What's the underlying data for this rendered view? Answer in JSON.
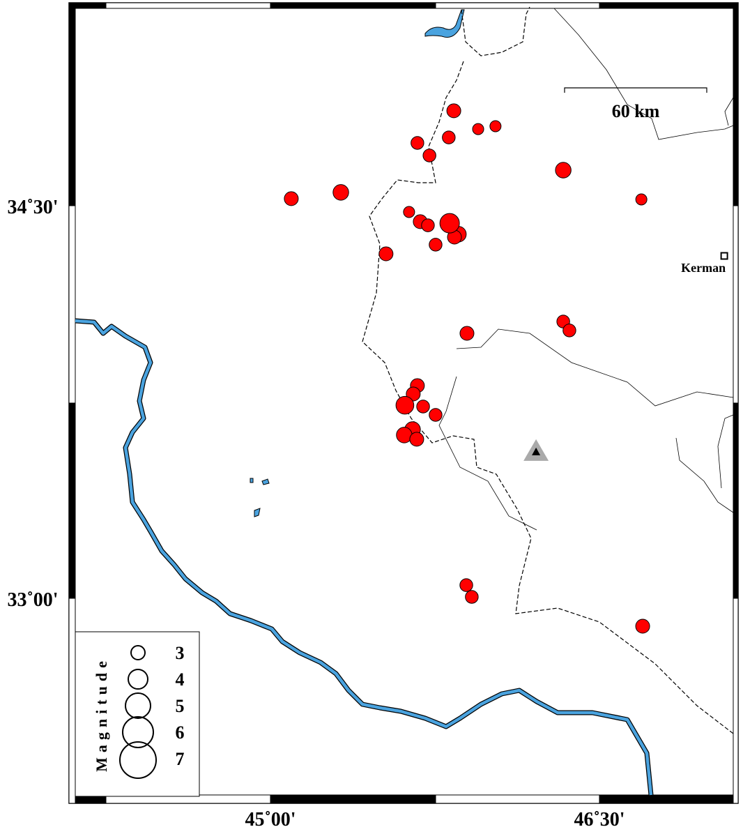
{
  "map": {
    "extent": {
      "lon_min": 44.08,
      "lon_max": 47.13,
      "lat_min": 32.23,
      "lat_max": 35.27
    },
    "lon_ticks": [
      {
        "value": 45.0,
        "label": "45˚00'"
      },
      {
        "value": 46.5,
        "label": "46˚30'"
      }
    ],
    "lat_ticks": [
      {
        "value": 34.5,
        "label": "34˚30'"
      },
      {
        "value": 33.0,
        "label": "33˚00'"
      }
    ],
    "scale_bar": {
      "label": "60 km",
      "length_km": 60
    },
    "colors": {
      "event": "#ff0000",
      "river": "#4aa3df",
      "station": "#000000",
      "station_halo": "#aaaaaa"
    }
  },
  "legend": {
    "title": "Magnitude",
    "items": [
      {
        "mag": 3,
        "label": "3"
      },
      {
        "mag": 4,
        "label": "4"
      },
      {
        "mag": 5,
        "label": "5"
      },
      {
        "mag": 6,
        "label": "6"
      },
      {
        "mag": 7,
        "label": "7"
      }
    ]
  },
  "city": {
    "name": "Kerman",
    "lon": 47.069,
    "lat": 34.308,
    "icon": "square-icon"
  },
  "station": {
    "lon": 46.211,
    "lat": 33.559,
    "icon": "triangle-icon"
  },
  "events": [
    {
      "lon": 45.836,
      "lat": 34.863,
      "mag": 3.0
    },
    {
      "lon": 45.947,
      "lat": 34.793,
      "mag": 2.5
    },
    {
      "lon": 46.026,
      "lat": 34.804,
      "mag": 2.5
    },
    {
      "lon": 45.813,
      "lat": 34.761,
      "mag": 2.8
    },
    {
      "lon": 45.67,
      "lat": 34.74,
      "mag": 2.8
    },
    {
      "lon": 45.725,
      "lat": 34.692,
      "mag": 2.8
    },
    {
      "lon": 46.335,
      "lat": 34.636,
      "mag": 3.3
    },
    {
      "lon": 45.095,
      "lat": 34.527,
      "mag": 3.0
    },
    {
      "lon": 45.321,
      "lat": 34.551,
      "mag": 3.3
    },
    {
      "lon": 46.691,
      "lat": 34.524,
      "mag": 2.5
    },
    {
      "lon": 45.632,
      "lat": 34.476,
      "mag": 2.5
    },
    {
      "lon": 45.683,
      "lat": 34.439,
      "mag": 3.0
    },
    {
      "lon": 45.718,
      "lat": 34.425,
      "mag": 2.8
    },
    {
      "lon": 45.857,
      "lat": 34.391,
      "mag": 3.3
    },
    {
      "lon": 45.839,
      "lat": 34.38,
      "mag": 3.0
    },
    {
      "lon": 45.817,
      "lat": 34.433,
      "mag": 4.0
    },
    {
      "lon": 45.753,
      "lat": 34.351,
      "mag": 2.8
    },
    {
      "lon": 45.527,
      "lat": 34.316,
      "mag": 3.0
    },
    {
      "lon": 46.335,
      "lat": 34.057,
      "mag": 2.8
    },
    {
      "lon": 46.363,
      "lat": 34.023,
      "mag": 2.8
    },
    {
      "lon": 45.896,
      "lat": 34.012,
      "mag": 3.0
    },
    {
      "lon": 45.67,
      "lat": 33.812,
      "mag": 3.0
    },
    {
      "lon": 45.651,
      "lat": 33.78,
      "mag": 3.0
    },
    {
      "lon": 45.613,
      "lat": 33.737,
      "mag": 3.7
    },
    {
      "lon": 45.696,
      "lat": 33.732,
      "mag": 2.8
    },
    {
      "lon": 45.753,
      "lat": 33.7,
      "mag": 2.8
    },
    {
      "lon": 45.648,
      "lat": 33.644,
      "mag": 3.3
    },
    {
      "lon": 45.61,
      "lat": 33.623,
      "mag": 3.3
    },
    {
      "lon": 45.667,
      "lat": 33.607,
      "mag": 3.0
    },
    {
      "lon": 45.893,
      "lat": 33.049,
      "mag": 2.8
    },
    {
      "lon": 45.918,
      "lat": 33.004,
      "mag": 2.8
    },
    {
      "lon": 46.697,
      "lat": 32.892,
      "mag": 3.0
    }
  ]
}
